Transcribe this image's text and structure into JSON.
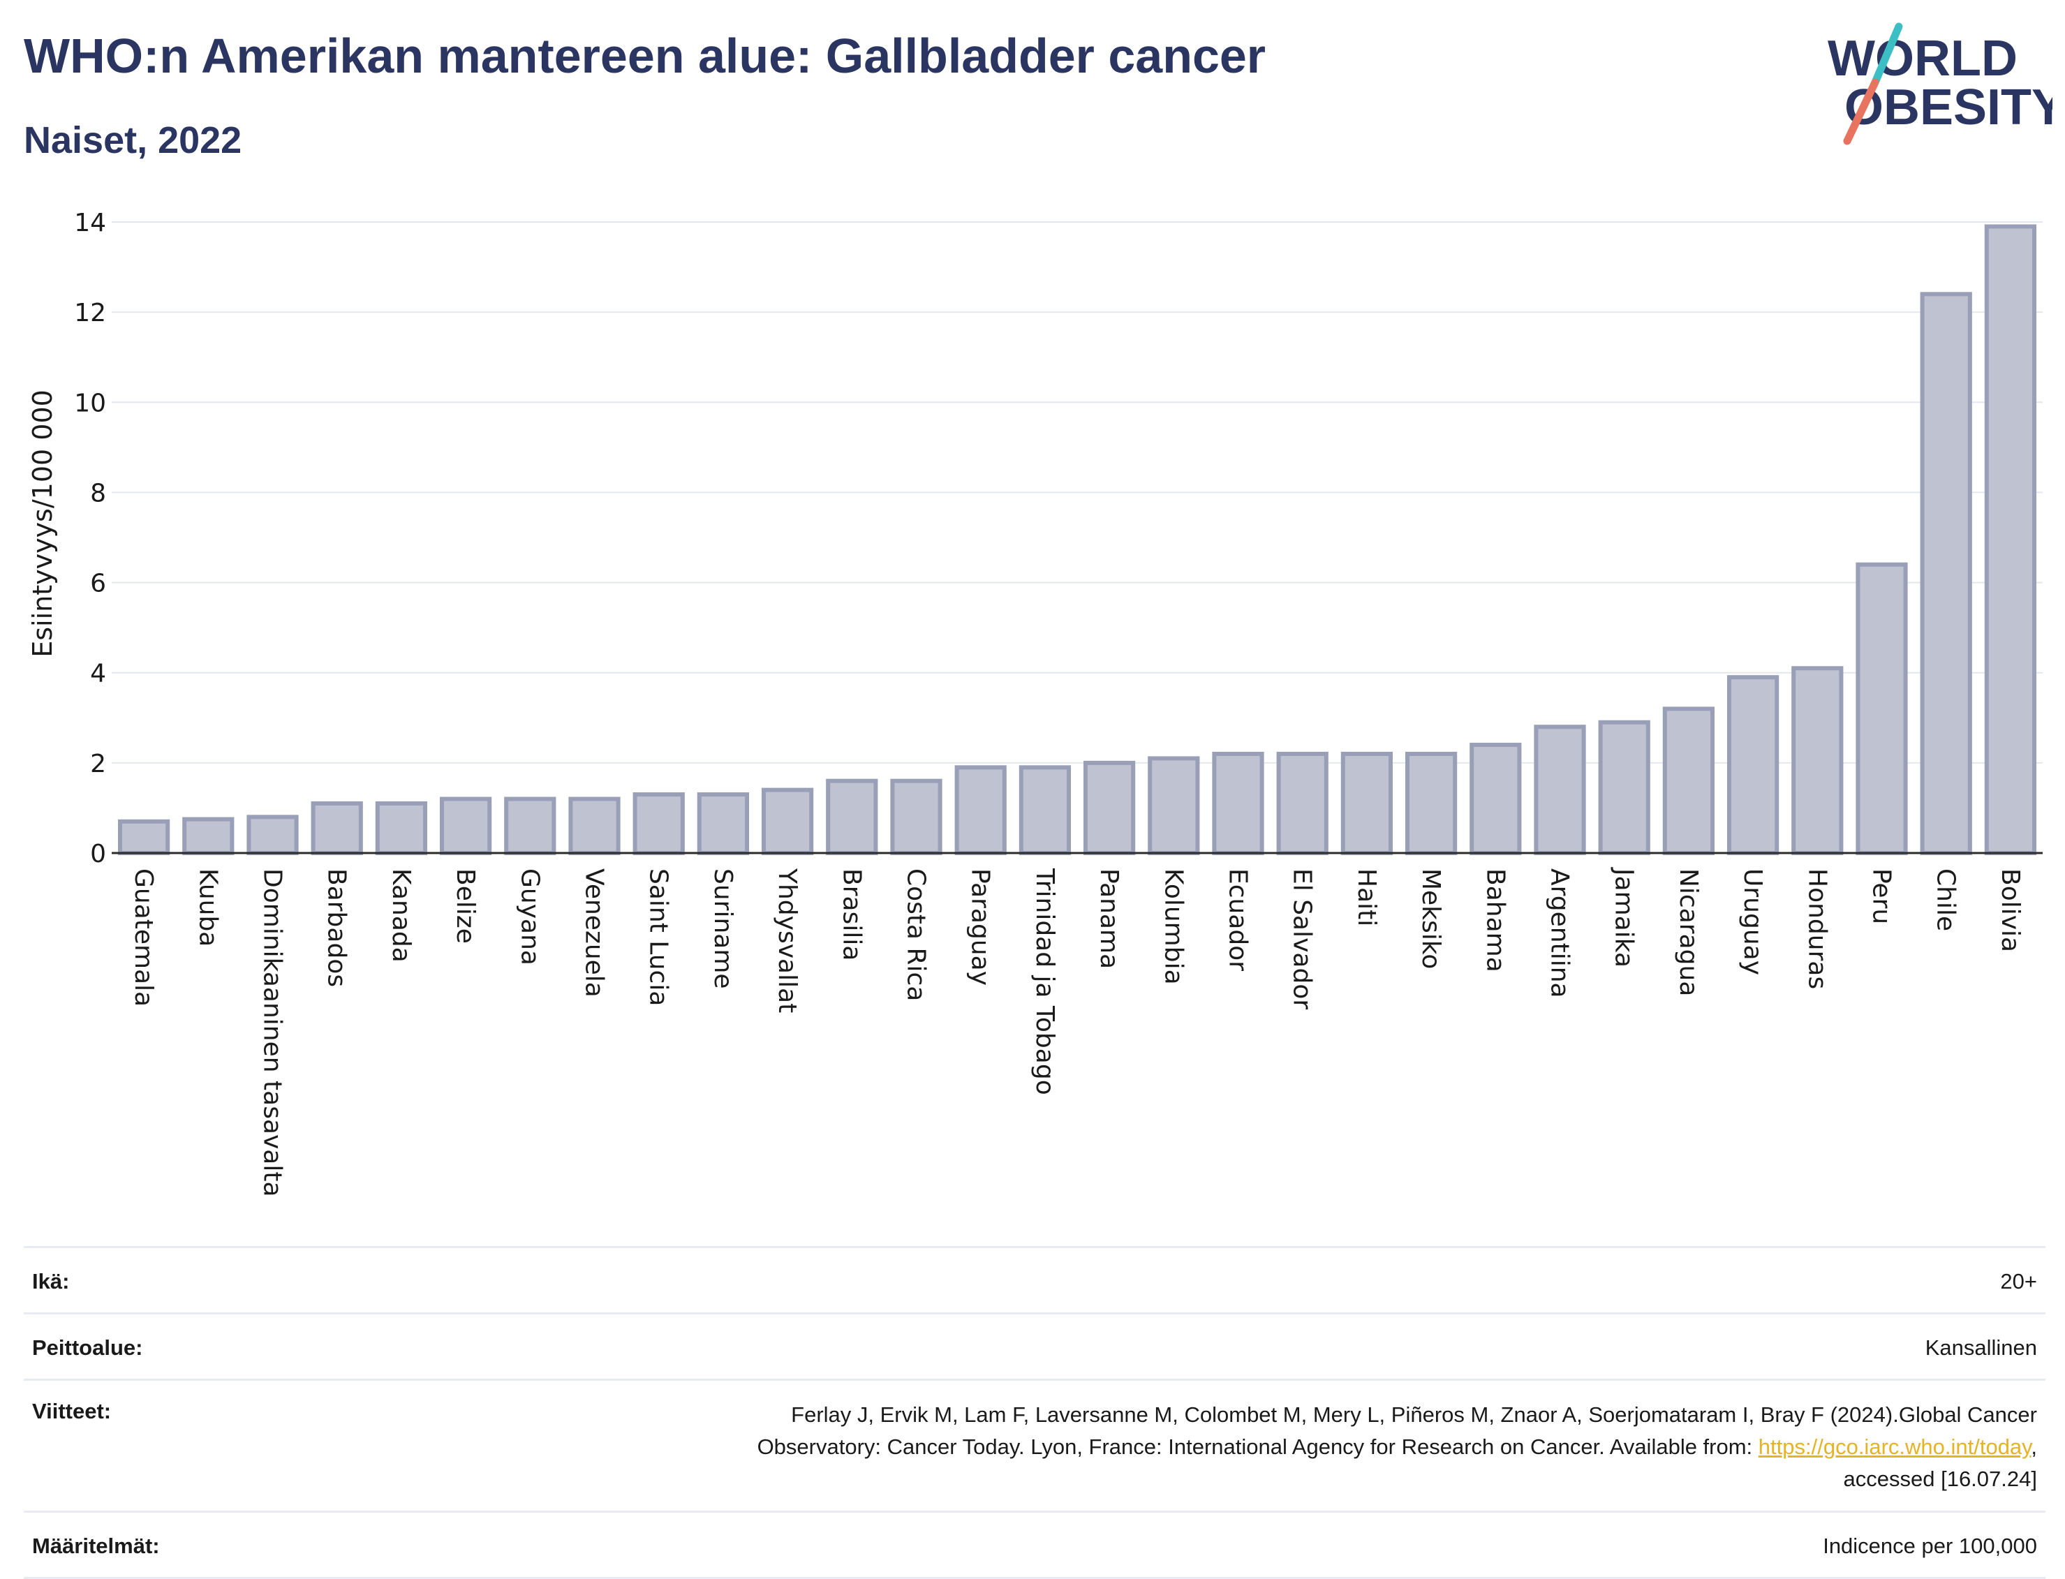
{
  "header": {
    "title": "WHO:n Amerikan mantereen alue: Gallbladder cancer",
    "subtitle": "Naiset, 2022"
  },
  "logo": {
    "line1": "WORLD",
    "line2": "OBESITY"
  },
  "colors": {
    "title": "#2b3562",
    "bar_fill": "#bfc2d0",
    "bar_stroke": "#9a9fb8",
    "link": "#e6b325",
    "logo_slash_teal": "#3bbfc4",
    "logo_slash_red": "#e8735f"
  },
  "chart_data": {
    "type": "bar",
    "ylabel": "Esiintyvyys/100 000",
    "ylim": [
      0,
      14
    ],
    "yticks": [
      0,
      2,
      4,
      6,
      8,
      10,
      12,
      14
    ],
    "grid": true,
    "categories": [
      "Guatemala",
      "Kuuba",
      "Dominikaaninen tasavalta",
      "Barbados",
      "Kanada",
      "Belize",
      "Guyana",
      "Venezuela",
      "Saint Lucia",
      "Suriname",
      "Yhdysvallat",
      "Brasilia",
      "Costa Rica",
      "Paraguay",
      "Trinidad ja Tobago",
      "Panama",
      "Kolumbia",
      "Ecuador",
      "El Salvador",
      "Haiti",
      "Meksiko",
      "Bahama",
      "Argentiina",
      "Jamaika",
      "Nicaragua",
      "Uruguay",
      "Honduras",
      "Peru",
      "Chile",
      "Bolivia"
    ],
    "values": [
      0.7,
      0.75,
      0.8,
      1.1,
      1.1,
      1.2,
      1.2,
      1.2,
      1.3,
      1.3,
      1.4,
      1.6,
      1.6,
      1.9,
      1.9,
      2.0,
      2.1,
      2.2,
      2.2,
      2.2,
      2.2,
      2.4,
      2.8,
      2.9,
      3.2,
      3.9,
      4.1,
      6.4,
      12.4,
      13.9
    ]
  },
  "meta": {
    "age_label": "Ikä:",
    "age_value": "20+",
    "coverage_label": "Peittoalue:",
    "coverage_value": "Kansallinen",
    "refs_label": "Viitteet:",
    "refs_line1": "Ferlay J, Ervik M, Lam F, Laversanne M, Colombet M, Mery L, Piñeros M, Znaor A, Soerjomataram I, Bray F (2024).Global Cancer",
    "refs_line2": "Observatory: Cancer Today. Lyon, France: International Agency for Research on Cancer. Available from: ",
    "refs_link": "https://gco.iarc.who.int/today",
    "refs_line2_end": ",",
    "refs_line3": "accessed [16.07.24]",
    "defs_label": "Määritelmät:",
    "defs_value": "Indicence per 100,000"
  }
}
